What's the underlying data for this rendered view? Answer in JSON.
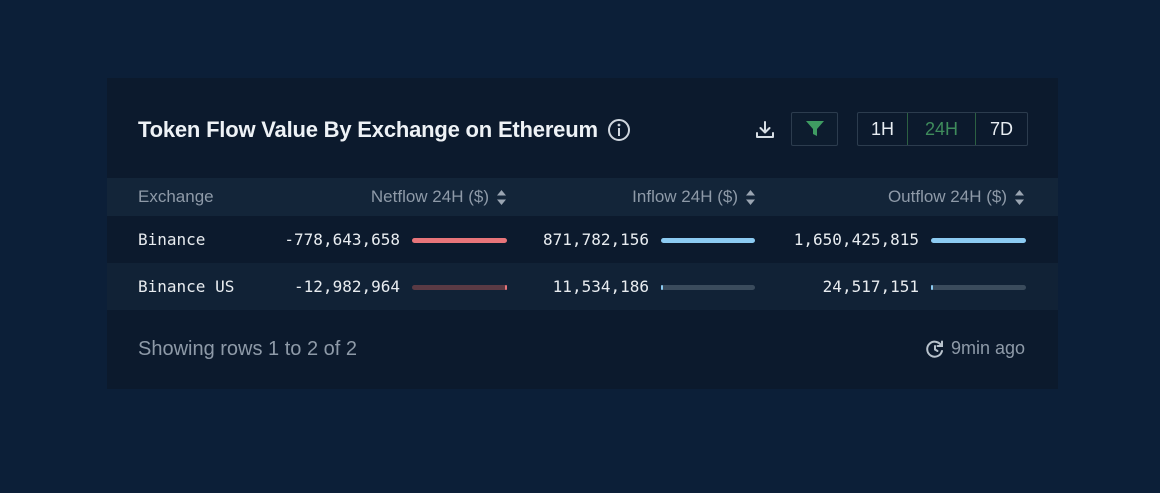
{
  "widget": {
    "title": "Token Flow Value By Exchange on Ethereum",
    "time_ranges": [
      "1H",
      "24H",
      "7D"
    ],
    "selected_range": "24H"
  },
  "table": {
    "columns": [
      "Exchange",
      "Netflow 24H ($)",
      "Inflow 24H ($)",
      "Outflow 24H ($)"
    ],
    "rows": [
      {
        "exchange": "Binance",
        "netflow": "-778,643,658",
        "inflow": "871,782,156",
        "outflow": "1,650,425,815",
        "netflow_share": 1.0,
        "inflow_share": 1.0,
        "outflow_share": 1.0
      },
      {
        "exchange": "Binance US",
        "netflow": "-12,982,964",
        "inflow": "11,534,186",
        "outflow": "24,517,151",
        "netflow_share": 0.017,
        "inflow_share": 0.013,
        "outflow_share": 0.015
      }
    ]
  },
  "footer": {
    "rows_text": "Showing rows 1 to 2 of 2",
    "updated": "9min ago"
  },
  "colors": {
    "netflow_bar": "#e8757a",
    "positive_bar": "#8ccbf2",
    "netflow_track": "#5a3a44",
    "positive_track": "#3a4b5c",
    "active_range": "#3f8c5c"
  }
}
